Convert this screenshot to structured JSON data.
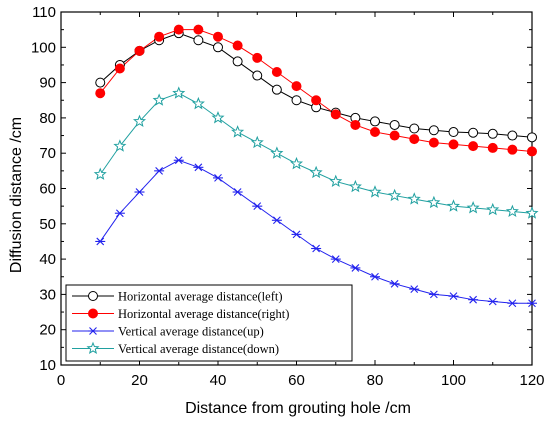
{
  "chart_data": {
    "type": "line",
    "title": "",
    "xlabel": "Distance from grouting hole /cm",
    "ylabel": "Diffusion distance /cm",
    "xlim": [
      0,
      120
    ],
    "ylim": [
      10,
      110
    ],
    "xticks": [
      "0",
      "20",
      "40",
      "60",
      "80",
      "100",
      "120"
    ],
    "yticks": [
      "10",
      "20",
      "30",
      "40",
      "50",
      "60",
      "70",
      "80",
      "90",
      "100",
      "110"
    ],
    "grid": false,
    "legend_position": "bottom-left",
    "x": [
      10,
      15,
      20,
      25,
      30,
      35,
      40,
      45,
      50,
      55,
      60,
      65,
      70,
      75,
      80,
      85,
      90,
      95,
      100,
      105,
      110,
      115,
      120
    ],
    "series": [
      {
        "name": "Horizontal average distance(left)",
        "marker": "open-circle",
        "color": "#000000",
        "markerColor": "#000000",
        "values": [
          90,
          95,
          99,
          102,
          104,
          102,
          100,
          96,
          92,
          88,
          85,
          83,
          81.5,
          80,
          79,
          78,
          77,
          76.5,
          76,
          75.8,
          75.5,
          75,
          74.5
        ]
      },
      {
        "name": "Horizontal average distance(right)",
        "marker": "filled-circle",
        "color": "#ff0000",
        "markerColor": "#ff0000",
        "values": [
          87,
          94,
          99,
          103,
          105,
          105,
          103,
          100.5,
          97,
          93,
          89,
          85,
          81,
          78,
          76,
          75,
          74,
          73,
          72.5,
          72,
          71.5,
          71,
          70.5
        ]
      },
      {
        "name": "Vertical average distance(up)",
        "marker": "asterisk",
        "color": "#2222ee",
        "markerColor": "#2222ee",
        "values": [
          45,
          53,
          59,
          65,
          68,
          66,
          63,
          59,
          55,
          51,
          47,
          43,
          40,
          37.5,
          35,
          33,
          31.5,
          30,
          29.5,
          28.5,
          28,
          27.5,
          27.5
        ]
      },
      {
        "name": "Vertical average distance(down)",
        "marker": "open-star",
        "color": "#20a0a0",
        "markerColor": "#20a0a0",
        "values": [
          64,
          72,
          79,
          85,
          87,
          84,
          80,
          76,
          73,
          70,
          67,
          64.5,
          62,
          60.5,
          59,
          58,
          57,
          56,
          55,
          54.5,
          54,
          53.5,
          53
        ]
      }
    ]
  }
}
